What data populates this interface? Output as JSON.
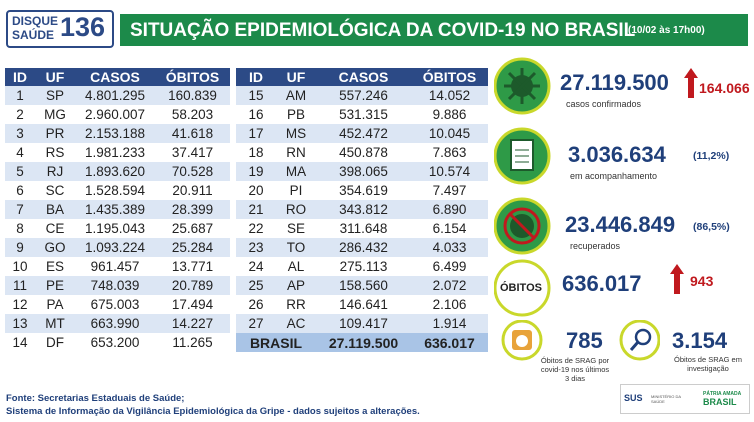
{
  "header": {
    "logo": {
      "line1": "DISQUE",
      "line2": "SAÚDE",
      "number": "136"
    },
    "title": "SITUAÇÃO EPIDEMIOLÓGICA DA COVID-19 NO BRASIL",
    "date": "(10/02 às 17h00)"
  },
  "table": {
    "columns": [
      "ID",
      "UF",
      "CASOS",
      "ÓBITOS"
    ],
    "left": [
      [
        "1",
        "SP",
        "4.801.295",
        "160.839"
      ],
      [
        "2",
        "MG",
        "2.960.007",
        "58.203"
      ],
      [
        "3",
        "PR",
        "2.153.188",
        "41.618"
      ],
      [
        "4",
        "RS",
        "1.981.233",
        "37.417"
      ],
      [
        "5",
        "RJ",
        "1.893.620",
        "70.528"
      ],
      [
        "6",
        "SC",
        "1.528.594",
        "20.911"
      ],
      [
        "7",
        "BA",
        "1.435.389",
        "28.399"
      ],
      [
        "8",
        "CE",
        "1.195.043",
        "25.687"
      ],
      [
        "9",
        "GO",
        "1.093.224",
        "25.284"
      ],
      [
        "10",
        "ES",
        "961.457",
        "13.771"
      ],
      [
        "11",
        "PE",
        "748.039",
        "20.789"
      ],
      [
        "12",
        "PA",
        "675.003",
        "17.494"
      ],
      [
        "13",
        "MT",
        "663.990",
        "14.227"
      ],
      [
        "14",
        "DF",
        "653.200",
        "11.265"
      ]
    ],
    "right": [
      [
        "15",
        "AM",
        "557.246",
        "14.052"
      ],
      [
        "16",
        "PB",
        "531.315",
        "9.886"
      ],
      [
        "17",
        "MS",
        "452.472",
        "10.045"
      ],
      [
        "18",
        "RN",
        "450.878",
        "7.863"
      ],
      [
        "19",
        "MA",
        "398.065",
        "10.574"
      ],
      [
        "20",
        "PI",
        "354.619",
        "7.497"
      ],
      [
        "21",
        "RO",
        "343.812",
        "6.890"
      ],
      [
        "22",
        "SE",
        "311.648",
        "6.154"
      ],
      [
        "23",
        "TO",
        "286.432",
        "4.033"
      ],
      [
        "24",
        "AL",
        "275.113",
        "6.499"
      ],
      [
        "25",
        "AP",
        "158.560",
        "2.072"
      ],
      [
        "26",
        "RR",
        "146.641",
        "2.106"
      ],
      [
        "27",
        "AC",
        "109.417",
        "1.914"
      ]
    ],
    "total": [
      "BRASIL",
      "27.119.500",
      "636.017"
    ]
  },
  "stats": {
    "cases": {
      "value": "27.119.500",
      "new": "164.066",
      "label": "casos confirmados"
    },
    "monitoring": {
      "value": "3.036.634",
      "percent": "(11,2%)",
      "label": "em acompanhamento"
    },
    "recovered": {
      "value": "23.446.849",
      "percent": "(86,5%)",
      "label": "recuperados"
    },
    "deaths": {
      "title": "ÓBITOS",
      "value": "636.017",
      "new": "943"
    },
    "srag_recent": {
      "value": "785",
      "label": "Óbitos de SRAG por covid-19 nos últimos 3 dias"
    },
    "srag_investigation": {
      "value": "3.154",
      "label": "Óbitos de SRAG em investigação"
    }
  },
  "footer": {
    "source": "Fonte: Secretarias Estaduais de Saúde;",
    "system": "Sistema de Informação da Vigilância Epidemiológica da Gripe - dados sujeitos a alterações."
  },
  "logos": {
    "sus": "SUS",
    "ministry": "MINISTÉRIO DA SAÚDE",
    "gov_line1": "PÁTRIA AMADA",
    "gov_line2": "BRASIL"
  }
}
